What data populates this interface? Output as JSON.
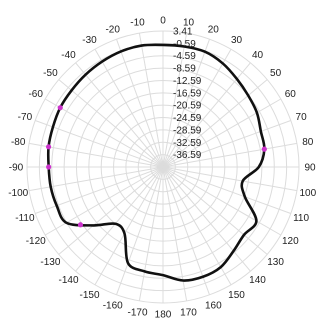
{
  "chart_data": {
    "type": "polar-line",
    "angle_direction": "clockwise",
    "angle_zero": "top",
    "angle_ticks": [
      0,
      10,
      20,
      30,
      40,
      50,
      60,
      70,
      80,
      90,
      100,
      110,
      120,
      130,
      140,
      150,
      160,
      170,
      180,
      -170,
      -160,
      -150,
      -140,
      -130,
      -120,
      -110,
      -100,
      -90,
      -80,
      -70,
      -60,
      -50,
      -40,
      -30,
      -20,
      -10
    ],
    "radial_ticks": [
      "3.41",
      "-0.59",
      "-4.59",
      "-8.59",
      "-12.59",
      "-16.59",
      "-20.59",
      "-24.59",
      "-28.59",
      "-32.59",
      "-36.59"
    ],
    "rlim": [
      -40.59,
      3.41
    ],
    "grid": true,
    "series": [
      {
        "color": "#111111",
        "marker_color": "#cc33cc",
        "points": [
          {
            "angle": 0,
            "value": -1.1
          },
          {
            "angle": 10,
            "value": -1.0
          },
          {
            "angle": 20,
            "value": -0.9
          },
          {
            "angle": 30,
            "value": -1.9
          },
          {
            "angle": 40,
            "value": -3.4
          },
          {
            "angle": 50,
            "value": -4.6
          },
          {
            "angle": 60,
            "value": -5.5
          },
          {
            "angle": 70,
            "value": -6.9
          },
          {
            "angle": 80,
            "value": -7.3
          },
          {
            "angle": 90,
            "value": -9.6
          },
          {
            "angle": 100,
            "value": -14.4
          },
          {
            "angle": 110,
            "value": -12.4
          },
          {
            "angle": 120,
            "value": -5.7
          },
          {
            "angle": 130,
            "value": -6.4
          },
          {
            "angle": 140,
            "value": -5.1
          },
          {
            "angle": 150,
            "value": -3.2
          },
          {
            "angle": 160,
            "value": -2.8
          },
          {
            "angle": 170,
            "value": -3.3
          },
          {
            "angle": 180,
            "value": -5.6
          },
          {
            "angle": -170,
            "value": -6.3
          },
          {
            "angle": -160,
            "value": -7.5
          },
          {
            "angle": -150,
            "value": -15.7
          },
          {
            "angle": -140,
            "value": -16.6
          },
          {
            "angle": -130,
            "value": -11.2
          },
          {
            "angle": -120,
            "value": -4.5
          },
          {
            "angle": -110,
            "value": -4.0
          },
          {
            "angle": -100,
            "value": -3.7
          },
          {
            "angle": -90,
            "value": -3.6
          },
          {
            "angle": -80,
            "value": -3.0
          },
          {
            "angle": -70,
            "value": -2.7
          },
          {
            "angle": -60,
            "value": -2.2
          },
          {
            "angle": -50,
            "value": -2.0
          },
          {
            "angle": -40,
            "value": -1.6
          },
          {
            "angle": -30,
            "value": -1.2
          },
          {
            "angle": -20,
            "value": -0.8
          },
          {
            "angle": -10,
            "value": -0.7
          }
        ],
        "markers": [
          {
            "angle": -80,
            "value": -3.0
          },
          {
            "angle": -90,
            "value": -3.6
          },
          {
            "angle": -60,
            "value": -2.2
          },
          {
            "angle": 80,
            "value": -7.3
          },
          {
            "angle": -125,
            "value": -8.0
          }
        ]
      }
    ]
  }
}
